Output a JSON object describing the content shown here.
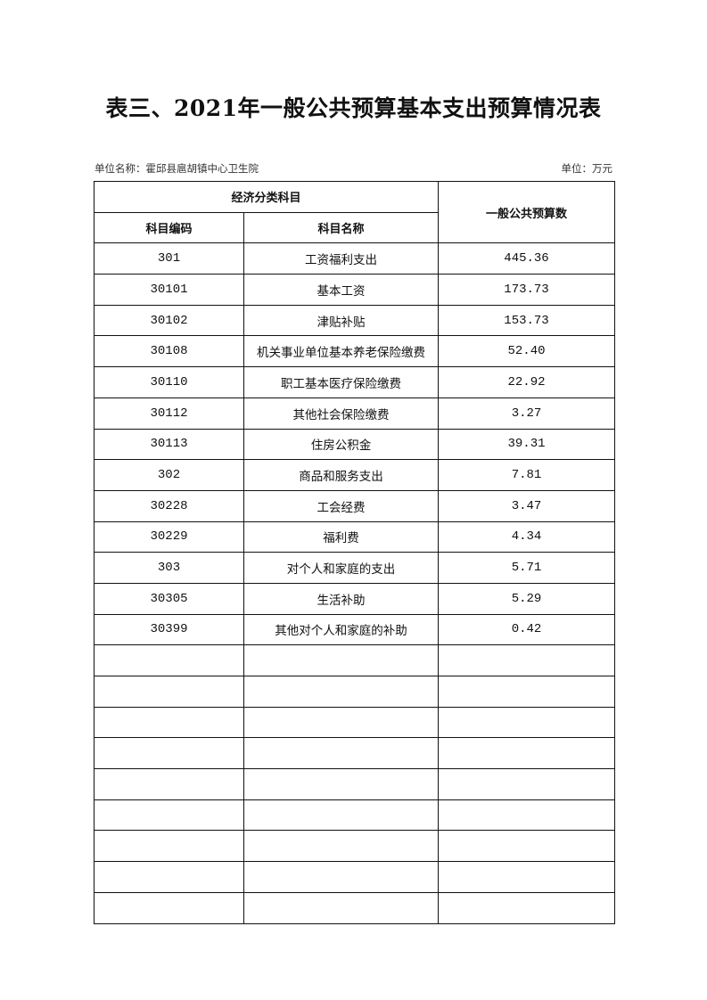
{
  "title": "表三、2021年一般公共预算基本支出预算情况表",
  "unit_name": "单位名称：霍邱县扈胡镇中心卫生院",
  "unit": "单位：万元",
  "headers": {
    "group": "经济分类科目",
    "code": "科目编码",
    "name": "科目名称",
    "amount": "一般公共预算数"
  },
  "rows": [
    {
      "code": "301",
      "name": "工资福利支出",
      "amount": "445.36"
    },
    {
      "code": "30101",
      "name": "基本工资",
      "amount": "173.73"
    },
    {
      "code": "30102",
      "name": "津贴补贴",
      "amount": "153.73"
    },
    {
      "code": "30108",
      "name": "机关事业单位基本养老保险缴费",
      "amount": "52.40"
    },
    {
      "code": "30110",
      "name": "职工基本医疗保险缴费",
      "amount": "22.92"
    },
    {
      "code": "30112",
      "name": "其他社会保险缴费",
      "amount": "3.27"
    },
    {
      "code": "30113",
      "name": "住房公积金",
      "amount": "39.31"
    },
    {
      "code": "302",
      "name": "商品和服务支出",
      "amount": "7.81"
    },
    {
      "code": "30228",
      "name": "工会经费",
      "amount": "3.47"
    },
    {
      "code": "30229",
      "name": "福利费",
      "amount": "4.34"
    },
    {
      "code": "303",
      "name": "对个人和家庭的支出",
      "amount": "5.71"
    },
    {
      "code": "30305",
      "name": "生活补助",
      "amount": "5.29"
    },
    {
      "code": "30399",
      "name": "其他对个人和家庭的补助",
      "amount": "0.42"
    }
  ]
}
